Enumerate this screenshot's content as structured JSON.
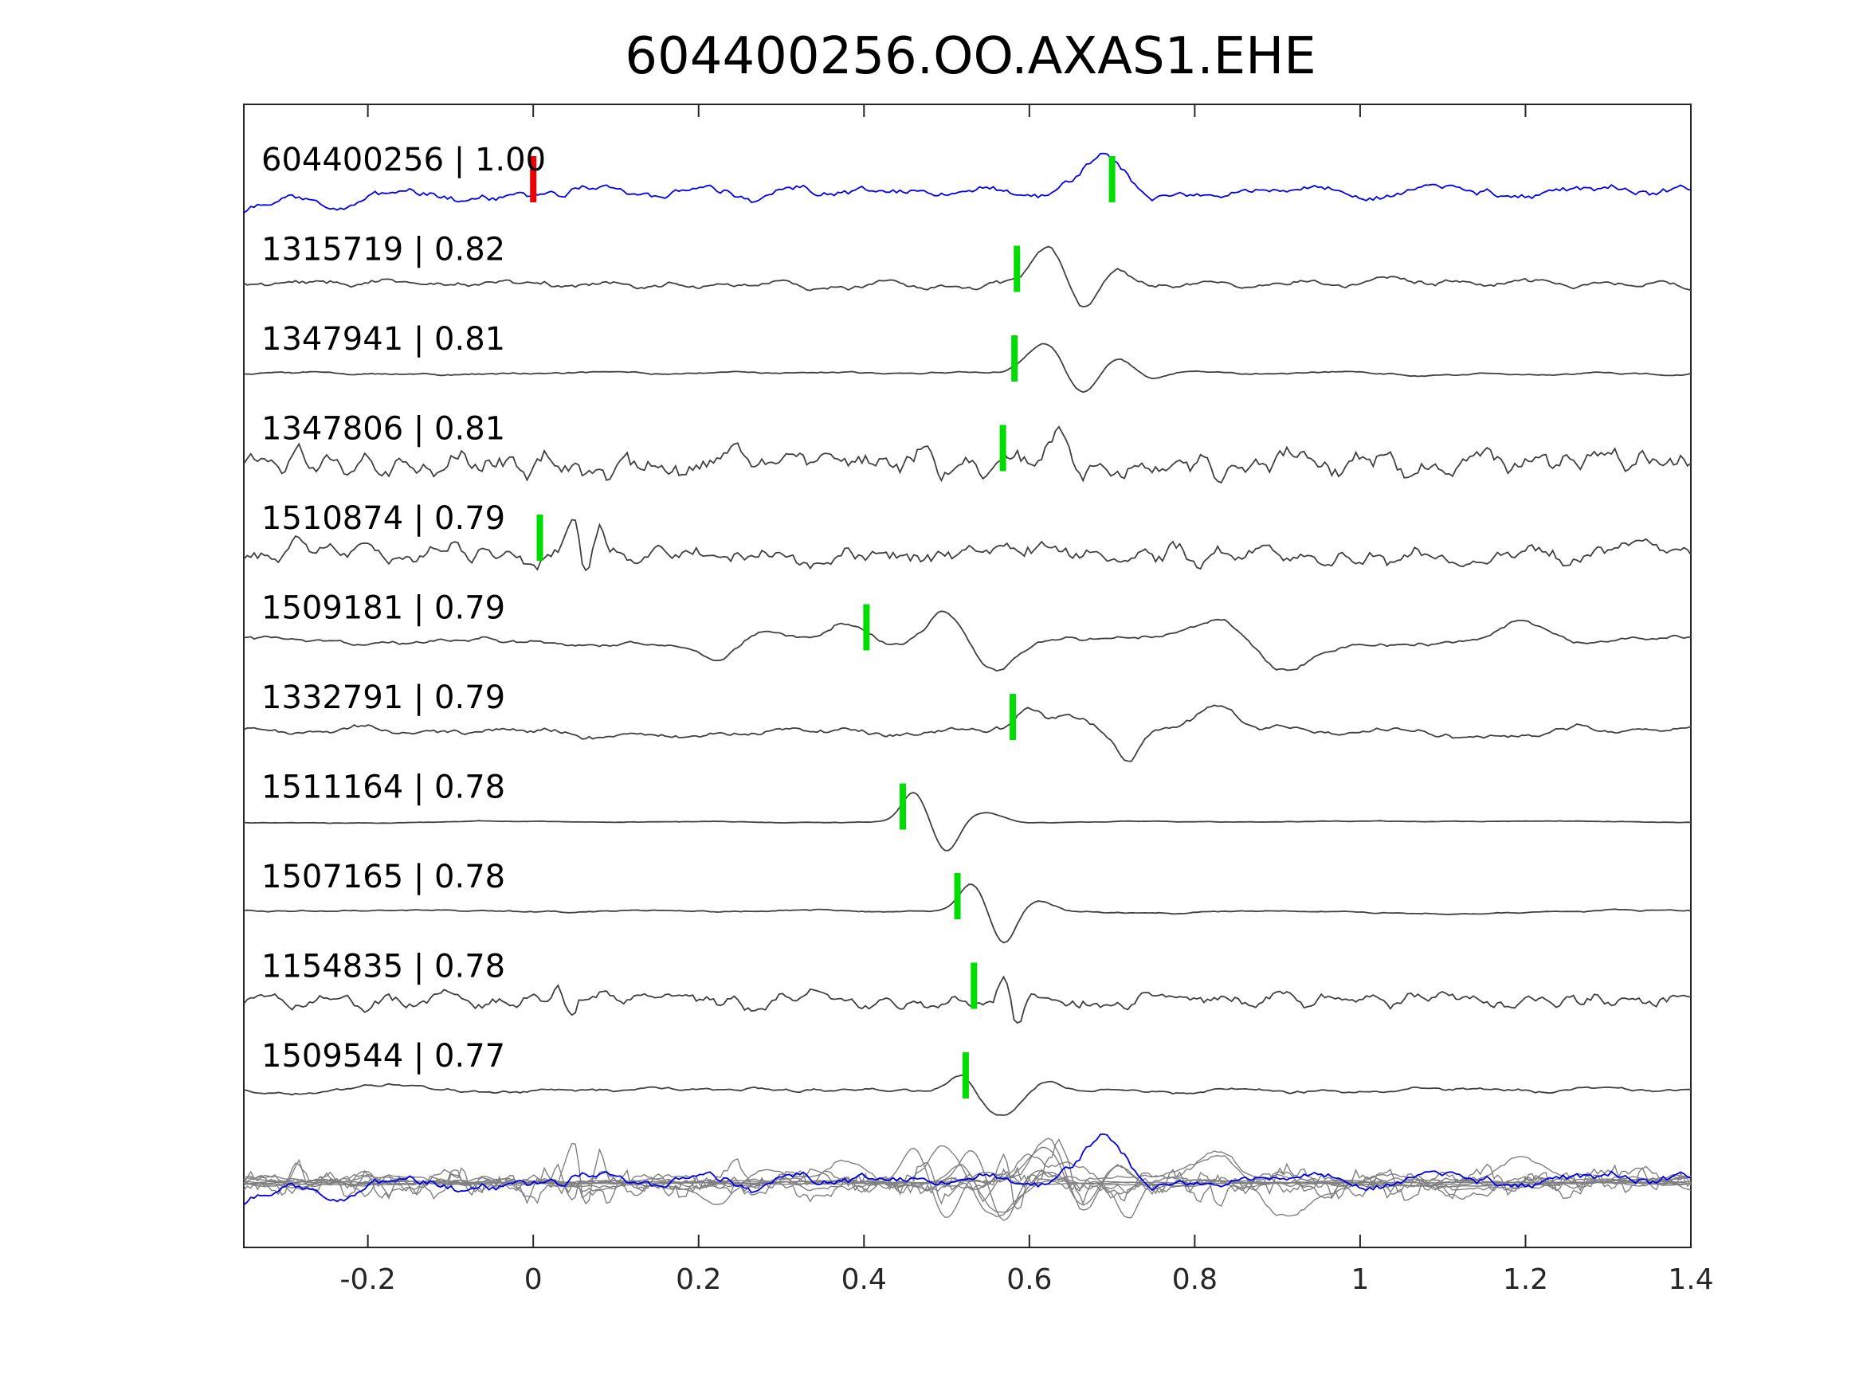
{
  "chart_data": {
    "type": "line",
    "title": "604400256.OO.AXAS1.EHE",
    "xlabel": "",
    "ylabel": "",
    "xlim": [
      -0.35,
      1.4
    ],
    "xticks": [
      -0.2,
      0,
      0.2,
      0.4,
      0.6,
      0.8,
      1,
      1.2,
      1.4
    ],
    "xtick_labels": [
      "-0.2",
      "0",
      "0.2",
      "0.4",
      "0.6",
      "0.8",
      "1",
      "1.2",
      "1.4"
    ],
    "yticks_shown": false,
    "grid": false,
    "colors": {
      "template": "#0000ee",
      "match": "#404040",
      "overlay": "#808080",
      "origin_pick": "#ee0000",
      "pick": "#00dd00"
    },
    "origin_pick_time": 0.0,
    "series": [
      {
        "label": "604400256 | 1.00",
        "pick_time": 0.7,
        "style": "template",
        "events": [
          {
            "t": 0.69,
            "a": 1.0,
            "w": 0.035
          }
        ],
        "noise": 0.55,
        "smooth": 6
      },
      {
        "label": "1315719 | 0.82",
        "pick_time": 0.585,
        "style": "match",
        "events": [
          {
            "t": 0.625,
            "a": 1.1,
            "w": 0.03
          },
          {
            "t": 0.665,
            "a": -0.9,
            "w": 0.025
          },
          {
            "t": 0.7,
            "a": 0.4,
            "w": 0.03
          }
        ],
        "noise": 0.22,
        "smooth": 4
      },
      {
        "label": "1347941 | 0.81",
        "pick_time": 0.582,
        "style": "match",
        "events": [
          {
            "t": 0.625,
            "a": 1.1,
            "w": 0.035
          },
          {
            "t": 0.66,
            "a": -1.0,
            "w": 0.03
          },
          {
            "t": 0.705,
            "a": 0.5,
            "w": 0.03
          },
          {
            "t": 0.745,
            "a": -0.3,
            "w": 0.03
          }
        ],
        "noise": 0.12,
        "smooth": 10
      },
      {
        "label": "1347806 | 0.81",
        "pick_time": 0.568,
        "style": "match",
        "events": [
          {
            "t": 0.635,
            "a": 1.0,
            "w": 0.02
          },
          {
            "t": 0.66,
            "a": -0.7,
            "w": 0.015
          }
        ],
        "noise": 0.6,
        "smooth": 2
      },
      {
        "label": "1510874 | 0.79",
        "pick_time": 0.008,
        "style": "match",
        "events": [
          {
            "t": 0.05,
            "a": 1.0,
            "w": 0.01
          },
          {
            "t": 0.065,
            "a": -0.9,
            "w": 0.01
          },
          {
            "t": 0.08,
            "a": 0.7,
            "w": 0.01
          }
        ],
        "noise": 0.5,
        "smooth": 2
      },
      {
        "label": "1509181 | 0.79",
        "pick_time": 0.403,
        "style": "match",
        "events": [
          {
            "t": 0.38,
            "a": 0.6,
            "w": 0.03
          },
          {
            "t": 0.225,
            "a": -0.6,
            "w": 0.03
          },
          {
            "t": 0.5,
            "a": 1.0,
            "w": 0.035
          },
          {
            "t": 0.555,
            "a": -0.9,
            "w": 0.035
          },
          {
            "t": 0.83,
            "a": 0.7,
            "w": 0.04
          },
          {
            "t": 0.91,
            "a": -0.7,
            "w": 0.04
          },
          {
            "t": 1.2,
            "a": 0.7,
            "w": 0.04
          }
        ],
        "noise": 0.35,
        "smooth": 12
      },
      {
        "label": "1332791 | 0.79",
        "pick_time": 0.58,
        "style": "match",
        "events": [
          {
            "t": 0.6,
            "a": 0.6,
            "w": 0.02
          },
          {
            "t": 0.645,
            "a": 0.5,
            "w": 0.03
          },
          {
            "t": 0.72,
            "a": -0.9,
            "w": 0.02
          },
          {
            "t": 0.82,
            "a": 0.6,
            "w": 0.04
          }
        ],
        "noise": 0.25,
        "smooth": 5
      },
      {
        "label": "1511164 | 0.78",
        "pick_time": 0.447,
        "style": "match",
        "events": [
          {
            "t": 0.46,
            "a": 0.9,
            "w": 0.02
          },
          {
            "t": 0.5,
            "a": -0.9,
            "w": 0.02
          },
          {
            "t": 0.545,
            "a": 0.3,
            "w": 0.03
          }
        ],
        "noise": 0.05,
        "smooth": 14
      },
      {
        "label": "1507165 | 0.78",
        "pick_time": 0.513,
        "style": "match",
        "events": [
          {
            "t": 0.53,
            "a": 0.8,
            "w": 0.02
          },
          {
            "t": 0.57,
            "a": -1.0,
            "w": 0.02
          },
          {
            "t": 0.61,
            "a": 0.3,
            "w": 0.025
          }
        ],
        "noise": 0.1,
        "smooth": 12
      },
      {
        "label": "1154835 | 0.78",
        "pick_time": 0.533,
        "style": "match",
        "events": [
          {
            "t": 0.03,
            "a": 0.7,
            "w": 0.01
          },
          {
            "t": 0.045,
            "a": -0.6,
            "w": 0.01
          },
          {
            "t": 0.57,
            "a": 0.8,
            "w": 0.01
          },
          {
            "t": 0.585,
            "a": -0.8,
            "w": 0.01
          }
        ],
        "noise": 0.35,
        "smooth": 2
      },
      {
        "label": "1509544 | 0.77",
        "pick_time": 0.523,
        "style": "match",
        "events": [
          {
            "t": 0.52,
            "a": 0.5,
            "w": 0.02
          },
          {
            "t": 0.565,
            "a": -0.8,
            "w": 0.03
          },
          {
            "t": 0.62,
            "a": 0.3,
            "w": 0.03
          }
        ],
        "noise": 0.2,
        "smooth": 10
      }
    ]
  }
}
